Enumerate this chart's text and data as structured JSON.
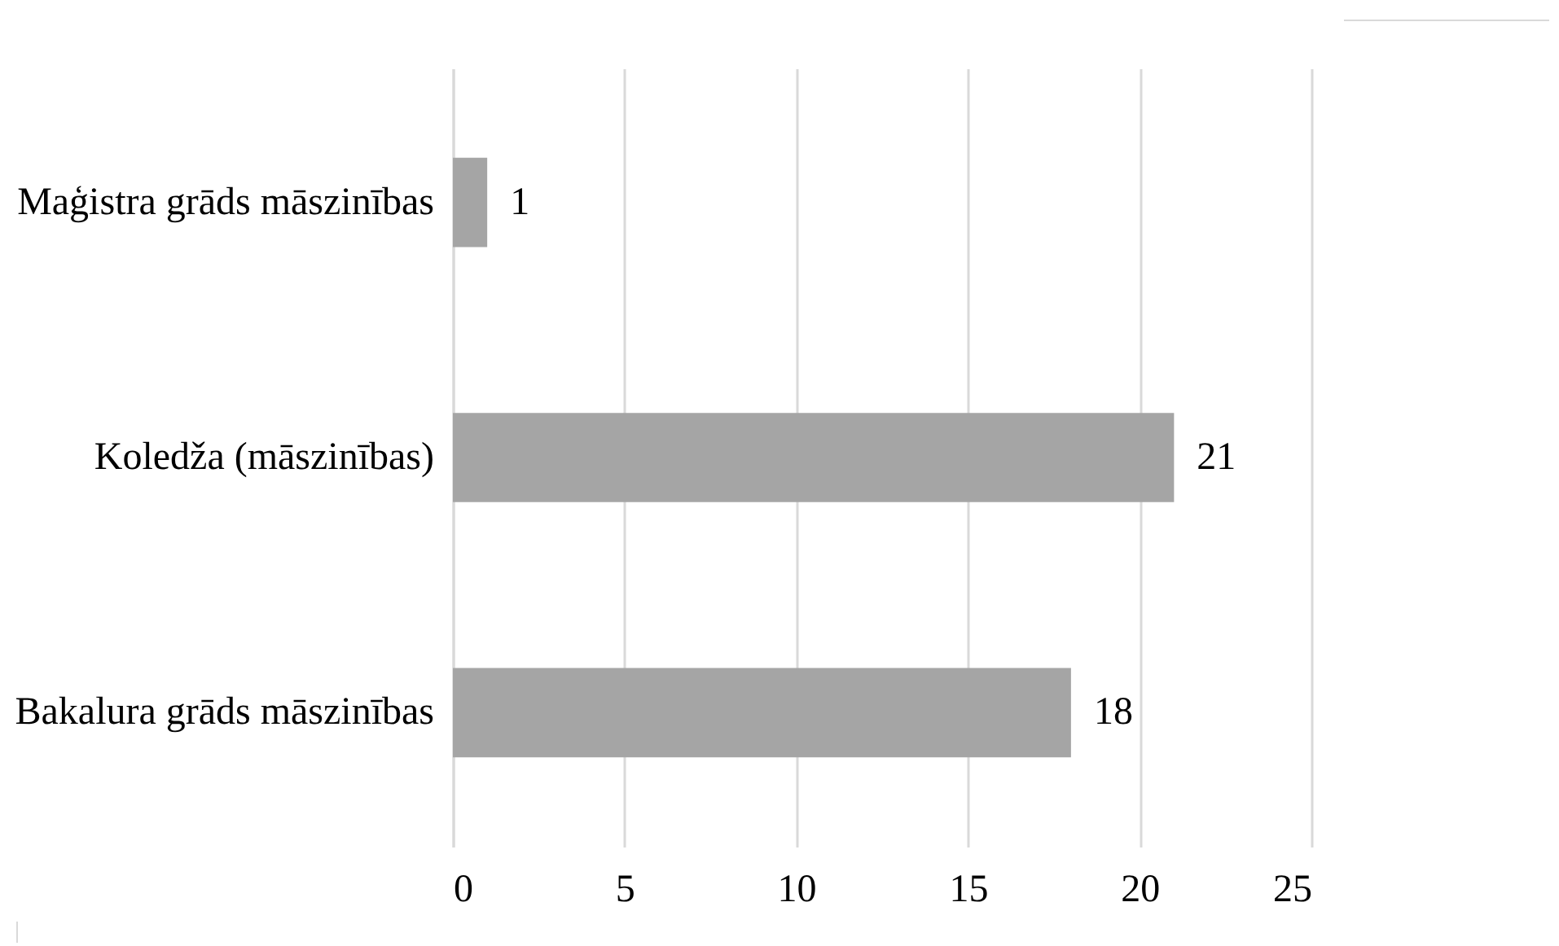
{
  "chart_data": {
    "type": "bar",
    "orientation": "horizontal",
    "categories": [
      "Maģistra grāds māszinības",
      "Koledža (māszinības)",
      "Bakalura grāds māszinības"
    ],
    "values": [
      1,
      21,
      18
    ],
    "color": "#a5a5a5",
    "xlim": [
      0,
      25
    ],
    "xticks": [
      0,
      5,
      10,
      15,
      20,
      25
    ],
    "grid": "x",
    "data_labels": true
  }
}
